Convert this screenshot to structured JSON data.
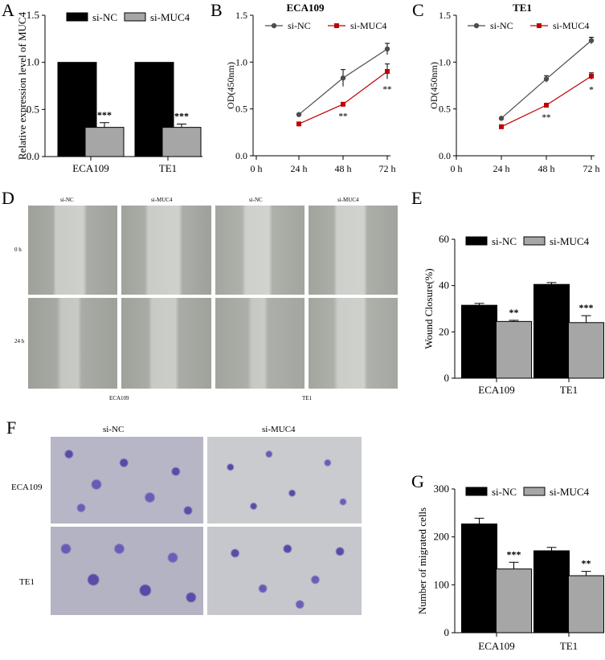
{
  "panel_letters": {
    "A": "A",
    "B": "B",
    "C": "C",
    "D": "D",
    "E": "E",
    "F": "F",
    "G": "G"
  },
  "colors": {
    "si_nc": "#000000",
    "si_muc4": "#a6a6a6",
    "line_nc": "#4d4d4d",
    "line_muc4": "#c00000"
  },
  "chart_data": [
    {
      "id": "A",
      "type": "bar",
      "title": "",
      "ylabel": "Relative expression level of MUC4",
      "xlabel": "",
      "ylim": [
        0,
        1.5
      ],
      "yticks": [
        "0.0",
        "0.5",
        "1.0",
        "1.5"
      ],
      "categories": [
        "ECA109",
        "TE1"
      ],
      "legend": "top",
      "series": [
        {
          "name": "si-NC",
          "values": [
            1.0,
            1.0
          ],
          "errors": [
            0,
            0
          ],
          "sig": [
            "",
            ""
          ]
        },
        {
          "name": "si-MUC4",
          "values": [
            0.31,
            0.31
          ],
          "errors": [
            0.05,
            0.035
          ],
          "sig": [
            "***",
            "***"
          ]
        }
      ]
    },
    {
      "id": "B",
      "type": "line",
      "title": "ECA109",
      "ylabel": "OD(450nm)",
      "xlabel": "",
      "ylim": [
        0,
        1.5
      ],
      "yticks": [
        "0.0",
        "0.5",
        "1.0",
        "1.5"
      ],
      "x": [
        "0 h",
        "24 h",
        "48 h",
        "72 h"
      ],
      "legend": "top",
      "series": [
        {
          "name": "si-NC",
          "values": [
            null,
            0.44,
            0.83,
            1.14
          ],
          "errors": [
            null,
            0,
            0.09,
            0.06
          ]
        },
        {
          "name": "si-MUC4",
          "values": [
            null,
            0.34,
            0.55,
            0.9
          ],
          "errors": [
            null,
            0,
            0.02,
            0.08
          ]
        }
      ],
      "annotations": [
        "",
        "",
        "**",
        "**"
      ]
    },
    {
      "id": "C",
      "type": "line",
      "title": "TE1",
      "ylabel": "OD(450nm)",
      "xlabel": "",
      "ylim": [
        0,
        1.5
      ],
      "yticks": [
        "0.0",
        "0.5",
        "1.0",
        "1.5"
      ],
      "x": [
        "0 h",
        "24 h",
        "48 h",
        "72 h"
      ],
      "legend": "top",
      "series": [
        {
          "name": "si-NC",
          "values": [
            null,
            0.4,
            0.82,
            1.23
          ],
          "errors": [
            null,
            0,
            0.035,
            0.035
          ]
        },
        {
          "name": "si-MUC4",
          "values": [
            null,
            0.31,
            0.54,
            0.85
          ],
          "errors": [
            null,
            0,
            0.02,
            0.035
          ]
        }
      ],
      "annotations": [
        "",
        "",
        "**",
        "*"
      ]
    },
    {
      "id": "E",
      "type": "bar",
      "title": "",
      "ylabel": "Wound Closure(%)",
      "xlabel": "",
      "ylim": [
        0,
        60
      ],
      "yticks": [
        "0",
        "20",
        "40",
        "60"
      ],
      "categories": [
        "ECA109",
        "TE1"
      ],
      "legend": "top",
      "series": [
        {
          "name": "si-NC",
          "values": [
            31.5,
            40.5
          ],
          "errors": [
            0.8,
            0.8
          ],
          "sig": [
            "",
            ""
          ]
        },
        {
          "name": "si-MUC4",
          "values": [
            24.5,
            24
          ],
          "errors": [
            0.5,
            3
          ],
          "sig": [
            "**",
            "***"
          ]
        }
      ]
    },
    {
      "id": "G",
      "type": "bar",
      "title": "",
      "ylabel": "Number of migrated cells",
      "xlabel": "",
      "ylim": [
        0,
        300
      ],
      "yticks": [
        "0",
        "100",
        "200",
        "300"
      ],
      "categories": [
        "ECA109",
        "TE1"
      ],
      "legend": "top",
      "series": [
        {
          "name": "si-NC",
          "values": [
            227,
            171
          ],
          "errors": [
            12,
            7
          ],
          "sig": [
            "",
            ""
          ]
        },
        {
          "name": "si-MUC4",
          "values": [
            133,
            119
          ],
          "errors": [
            14,
            9
          ],
          "sig": [
            "***",
            "**"
          ]
        }
      ]
    }
  ],
  "wound_panel": {
    "col_labels": [
      "si-NC",
      "si-MUC4",
      "si-NC",
      "si-MUC4"
    ],
    "row_labels": [
      "0 h",
      "24 h"
    ],
    "group_labels": [
      "ECA109",
      "TE1"
    ]
  },
  "transwell_panel": {
    "col_labels": [
      "si-NC",
      "si-MUC4"
    ],
    "row_labels": [
      "ECA109",
      "TE1"
    ]
  }
}
